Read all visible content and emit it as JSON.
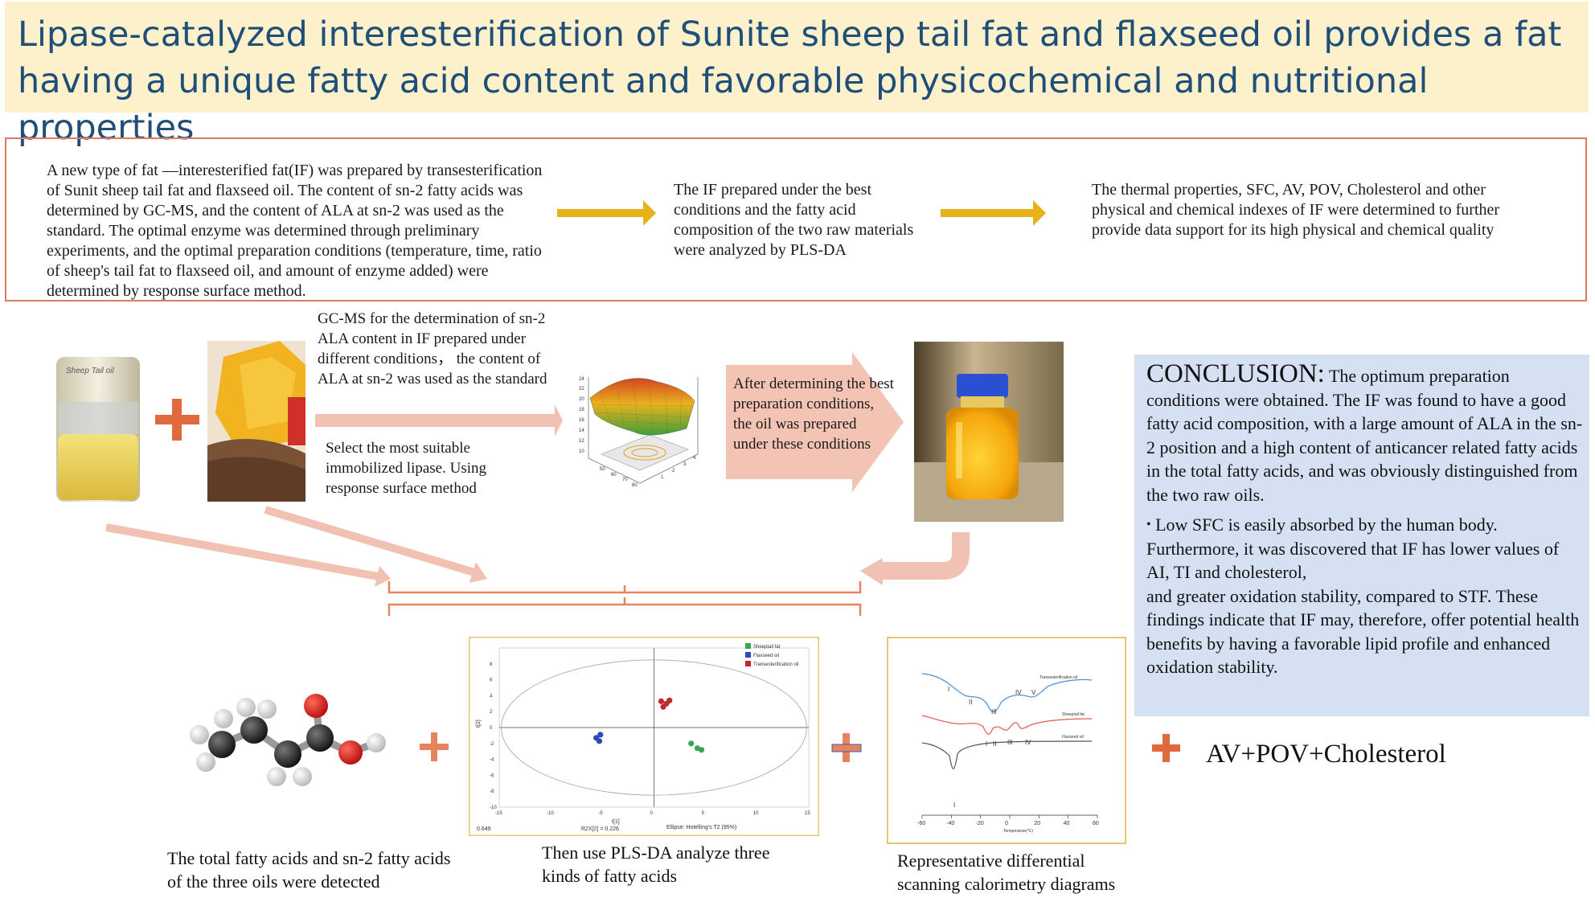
{
  "title": "Lipase-catalyzed interesterification of Sunite sheep tail fat and flaxseed oil provides a fat having a unique fatty acid content and favorable physicochemical and nutritional properties",
  "summary": {
    "step1": "A new type of fat —interesterified fat(IF) was prepared by transesterification of Sunit sheep tail fat and flaxseed oil. The content of sn-2 fatty acids was determined by GC-MS, and the content of ALA at sn-2 was used as the standard. The optimal enzyme was determined through preliminary experiments, and the optimal preparation conditions (temperature, time, ratio of sheep's tail fat to flaxseed oil, and amount of enzyme added) were determined by response surface method.",
    "step2": "The IF prepared under the best conditions and the fatty acid composition of the two raw materials were analyzed by PLS-DA",
    "step3": "The thermal properties, SFC, AV, POV, Cholesterol and other physical and chemical indexes of IF were determined to further provide data support for its high physical and chemical quality"
  },
  "process": {
    "jar_label": "Sheep Tail oil",
    "gcms_text": "GC-MS for the determination of sn-2 ALA content in IF prepared under different conditions， the content of ALA at sn-2 was used as the standard",
    "lipase_text": "Select the most suitable immobilized lipase. Using response surface method",
    "prepared_text": "After determining the best preparation conditions, the oil was prepared under these conditions"
  },
  "conclusion": {
    "heading": "CONCLUSION:",
    "para1": "The optimum preparation conditions were obtained. The IF was found to have a good fatty acid composition, with a large amount of ALA in the sn-2 position and a high content of anticancer related fatty acids in the total fatty acids, and was obviously distinguished from the two raw oils.",
    "bullet": "•",
    "para2_l1": "Low SFC is easily absorbed by the human body.",
    "para2_l2": "Furthermore, it was discovered that IF has lower values of AI, TI and cholesterol,",
    "para2_l3": "and greater oxidation stability, compared to STF. These findings indicate that IF may, therefore, offer potential health benefits by having a favorable lipid profile and enhanced oxidation stability."
  },
  "av_text": "AV+POV+Cholesterol",
  "captions": {
    "fatty": "The total fatty acids and sn-2 fatty acids of the three oils were detected",
    "plsda": "Then use PLS-DA analyze three kinds of fatty acids",
    "dsc": "Representative differential scanning calorimetry diagrams"
  },
  "plsda_plot": {
    "legend": [
      "Sheeptail fat",
      "Flaxseed oil",
      "Transesterification oil"
    ],
    "colors": [
      "#3aa655",
      "#3347b5",
      "#c0282d"
    ],
    "x_ticks": [
      "-15",
      "-10",
      "-5",
      "0",
      "5",
      "10",
      "15"
    ],
    "y_ticks": [
      "8",
      "6",
      "4",
      "2",
      "0",
      "-2",
      "-4",
      "-6",
      "-8",
      "-10"
    ],
    "ylabel": "t[2]",
    "xlabel": "t[1]",
    "footer_left": "0.649",
    "footer_mid": "R2X[2] = 0.226",
    "footer_right": "Ellipse: Hotelling's T2 (95%)",
    "points": {
      "sheeptail": [
        [
          3.6,
          -2.0
        ],
        [
          4.2,
          -2.6
        ],
        [
          4.6,
          -2.8
        ]
      ],
      "flaxseed": [
        [
          -5.6,
          -1.3
        ],
        [
          -5.2,
          -0.9
        ],
        [
          -5.3,
          -1.7
        ]
      ],
      "trans": [
        [
          0.7,
          3.3
        ],
        [
          1.2,
          3.0
        ],
        [
          0.9,
          2.6
        ],
        [
          1.5,
          3.4
        ]
      ]
    }
  },
  "dsc_plot": {
    "series": [
      "Transesterification oil",
      "Sheeptail fat",
      "Flaxseed oil"
    ],
    "peaks_trans": [
      "I",
      "II",
      "III",
      "IV",
      "V"
    ],
    "peaks_sheep": [
      "I",
      "II",
      "III",
      "IV"
    ],
    "peaks_flax": [
      "I"
    ],
    "x_ticks": [
      "-60",
      "-40",
      "-20",
      "0",
      "20",
      "40",
      "60"
    ],
    "xlabel": "Temperature(℃)"
  },
  "surface_plot": {
    "y_ticks": [
      "24",
      "22",
      "20",
      "18",
      "16",
      "14",
      "12",
      "10"
    ],
    "x_ticks_left": [
      "50",
      "60",
      "70",
      "80"
    ],
    "x_ticks_right": [
      "1",
      "2",
      "3",
      "4"
    ]
  }
}
